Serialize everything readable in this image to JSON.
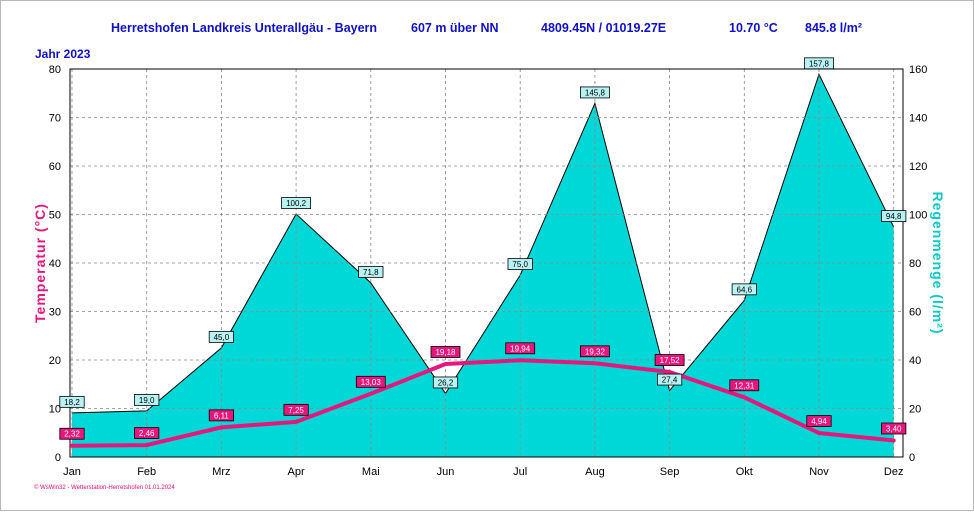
{
  "header": {
    "station": "Herretshofen Landkreis Unterallgäu - Bayern",
    "altitude": "607 m über NN",
    "coords": "4809.45N / 01019.27E",
    "avg_temp": "10.70 °C",
    "total_rain": "845.8 l/m²",
    "year": "Jahr  2023"
  },
  "footer": "© WsWin32 - Wetterstation-Herretshofen  01.01.2024",
  "colors": {
    "rain_fill": "#00dcdc",
    "temp_line": "#e6167d",
    "header_text": "#1010c8",
    "grid": "#888888"
  },
  "chart_data": {
    "type": "area",
    "categories": [
      "Jan",
      "Feb",
      "Mrz",
      "Apr",
      "Mai",
      "Jun",
      "Jul",
      "Aug",
      "Sep",
      "Okt",
      "Nov",
      "Dez"
    ],
    "series": [
      {
        "axis": "right",
        "type": "area",
        "values": [
          18.2,
          19.0,
          45.0,
          100.2,
          71.8,
          26.2,
          75.0,
          145.8,
          27.4,
          64.6,
          157.8,
          94.8
        ],
        "labels": [
          "18,2",
          "19,0",
          "45,0",
          "100,2",
          "71,8",
          "26,2",
          "75,0",
          "145,8",
          "27,4",
          "64,6",
          "157,8",
          "94,8"
        ]
      },
      {
        "axis": "left",
        "type": "line",
        "values": [
          2.32,
          2.46,
          6.11,
          7.25,
          13.03,
          19.18,
          19.94,
          19.32,
          17.52,
          12.31,
          4.94,
          3.4
        ],
        "labels": [
          "2,32",
          "2,46",
          "6,11",
          "7,25",
          "13,03",
          "19,18",
          "19,94",
          "19,32",
          "17,52",
          "12,31",
          "4,94",
          "3,40"
        ]
      }
    ],
    "ylabel_left": "Temperatur  (°C)",
    "ylabel_right": "Regenmenge  (l/m²)",
    "ylim_left": [
      0,
      80
    ],
    "ylim_right": [
      0,
      160
    ],
    "yticks_left": [
      0,
      10,
      20,
      30,
      40,
      50,
      60,
      70,
      80
    ],
    "yticks_right": [
      0,
      20,
      40,
      60,
      80,
      100,
      120,
      140,
      160
    ],
    "grid": true
  }
}
